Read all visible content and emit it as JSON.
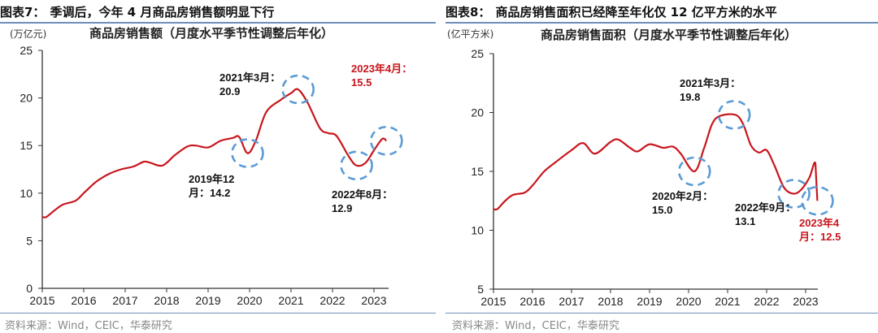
{
  "colors": {
    "line": "#c8161d",
    "circle": "#5b9bd5",
    "axis": "#333333",
    "rule": "#6f8fb7",
    "highlight": "#c8161d",
    "text": "#111111"
  },
  "source": "资料来源：Wind，CEIC，华泰研究",
  "chart_data": [
    {
      "type": "line",
      "figure_title": "图表7：季调后，今年 4 月商品房销售额明显下行",
      "title": "商品房销售额（月度水平季节性调整后年化）",
      "ylabel": "(万亿元)",
      "xlabel": "",
      "ylim": [
        0,
        25
      ],
      "yticks": [
        "0",
        "5",
        "10",
        "15",
        "20",
        "25"
      ],
      "xlim": [
        2015,
        2023.35
      ],
      "xticks": [
        "2015",
        "2016",
        "2017",
        "2018",
        "2019",
        "2020",
        "2021",
        "2022",
        "2023"
      ],
      "grid": false,
      "series": [
        {
          "name": "商品房销售额",
          "x": [
            2015.0,
            2015.1,
            2015.3,
            2015.5,
            2015.8,
            2016.0,
            2016.3,
            2016.6,
            2016.9,
            2017.2,
            2017.45,
            2017.6,
            2017.9,
            2018.2,
            2018.5,
            2018.7,
            2019.0,
            2019.3,
            2019.6,
            2019.75,
            2019.95,
            2020.15,
            2020.4,
            2020.75,
            2021.0,
            2021.17,
            2021.4,
            2021.7,
            2021.9,
            2022.1,
            2022.4,
            2022.58,
            2022.8,
            2023.0,
            2023.2,
            2023.3
          ],
          "y": [
            7.5,
            7.5,
            8.2,
            8.8,
            9.2,
            10.0,
            11.2,
            12.0,
            12.5,
            12.8,
            13.3,
            13.2,
            12.9,
            14.0,
            14.9,
            15.0,
            14.8,
            15.5,
            15.8,
            15.9,
            14.2,
            15.5,
            18.5,
            19.8,
            20.5,
            20.9,
            19.5,
            16.8,
            16.3,
            16.0,
            13.8,
            12.9,
            13.2,
            14.5,
            15.7,
            15.5
          ]
        }
      ],
      "annotations": [
        {
          "label": "2021年3月：",
          "value": "20.9",
          "x": 2021.17,
          "y": 20.9,
          "highlight": false
        },
        {
          "label": "2019年12",
          "value": "月：14.2",
          "x": 2019.95,
          "y": 14.2,
          "highlight": false
        },
        {
          "label": "2022年8月：",
          "value": "12.9",
          "x": 2022.58,
          "y": 12.9,
          "highlight": false
        },
        {
          "label": "2023年4月：",
          "value": "15.5",
          "x": 2023.3,
          "y": 15.5,
          "highlight": true
        }
      ]
    },
    {
      "type": "line",
      "figure_title": "图表8：商品房销售面积已经降至年化仅 12 亿平方米的水平",
      "title": "商品房销售面积（月度水平季节性调整后年化）",
      "ylabel": "(亿平方米)",
      "xlabel": "",
      "ylim": [
        5,
        25
      ],
      "yticks": [
        "5",
        "10",
        "15",
        "20",
        "25"
      ],
      "xlim": [
        2015,
        2023.3
      ],
      "xticks": [
        "2015",
        "2016",
        "2017",
        "2018",
        "2019",
        "2020",
        "2021",
        "2022",
        "2023"
      ],
      "grid": false,
      "series": [
        {
          "name": "商品房销售面积",
          "x": [
            2015.0,
            2015.1,
            2015.3,
            2015.5,
            2015.8,
            2016.0,
            2016.3,
            2016.6,
            2017.0,
            2017.3,
            2017.6,
            2018.0,
            2018.2,
            2018.5,
            2018.7,
            2019.0,
            2019.35,
            2019.6,
            2019.8,
            2020.15,
            2020.4,
            2020.6,
            2020.8,
            2021.2,
            2021.4,
            2021.6,
            2021.8,
            2022.0,
            2022.2,
            2022.45,
            2022.7,
            2022.9,
            2023.1,
            2023.25,
            2023.3
          ],
          "y": [
            11.8,
            11.8,
            12.5,
            13.0,
            13.2,
            13.8,
            15.0,
            15.8,
            16.8,
            17.4,
            16.5,
            17.5,
            17.7,
            17.0,
            16.7,
            17.3,
            17.0,
            17.1,
            16.5,
            15.0,
            17.0,
            19.0,
            19.7,
            19.8,
            19.0,
            17.2,
            16.6,
            16.8,
            15.5,
            13.6,
            13.1,
            13.5,
            14.5,
            15.7,
            12.5
          ]
        }
      ],
      "annotations": [
        {
          "label": "2021年3月：",
          "value": "19.8",
          "x": 2021.17,
          "y": 19.8,
          "highlight": false
        },
        {
          "label": "2020年2月：",
          "value": "15.0",
          "x": 2020.15,
          "y": 15.0,
          "highlight": false
        },
        {
          "label": "2022年9月：",
          "value": "13.1",
          "x": 2022.7,
          "y": 13.1,
          "highlight": false
        },
        {
          "label": "2023年4",
          "value": "月：12.5",
          "x": 2023.3,
          "y": 12.5,
          "highlight": true
        }
      ]
    }
  ],
  "figure_prefix": [
    "图表7：",
    "图表8："
  ],
  "figure_title_rest": [
    "季调后，今年 4 月商品房销售额明显下行",
    "商品房销售面积已经降至年化仅 12 亿平方米的水平"
  ]
}
